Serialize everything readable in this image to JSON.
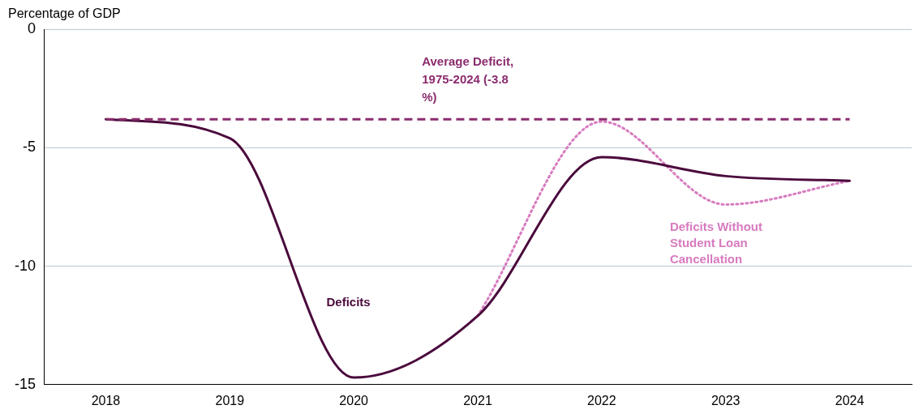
{
  "chart_data": {
    "type": "line",
    "ylabel": "Percentage of GDP",
    "categories": [
      "2018",
      "2019",
      "2020",
      "2021",
      "2022",
      "2023",
      "2024"
    ],
    "series": [
      {
        "name": "Deficits",
        "color": "#4b0a3c",
        "values": [
          -3.8,
          -4.6,
          -14.7,
          -12.1,
          -5.4,
          -6.2,
          -6.4
        ]
      },
      {
        "name": "Deficits Without Student Loan Cancellation",
        "color": "#d77bbf",
        "line_style": "dotted",
        "values": [
          null,
          null,
          null,
          -12.1,
          -3.9,
          -7.4,
          -6.4
        ]
      }
    ],
    "ylim": [
      -15,
      0
    ],
    "yticks": [
      -15,
      -10,
      -5,
      0
    ],
    "grid": "y",
    "legend": false,
    "marker": "none",
    "ref_lines": [
      {
        "axis": "y",
        "value": -3.8,
        "label": "Average Deficit, 1975-2024 (-3.8 %)",
        "color": "#8b2c6e",
        "line_style": "dashed"
      }
    ]
  }
}
